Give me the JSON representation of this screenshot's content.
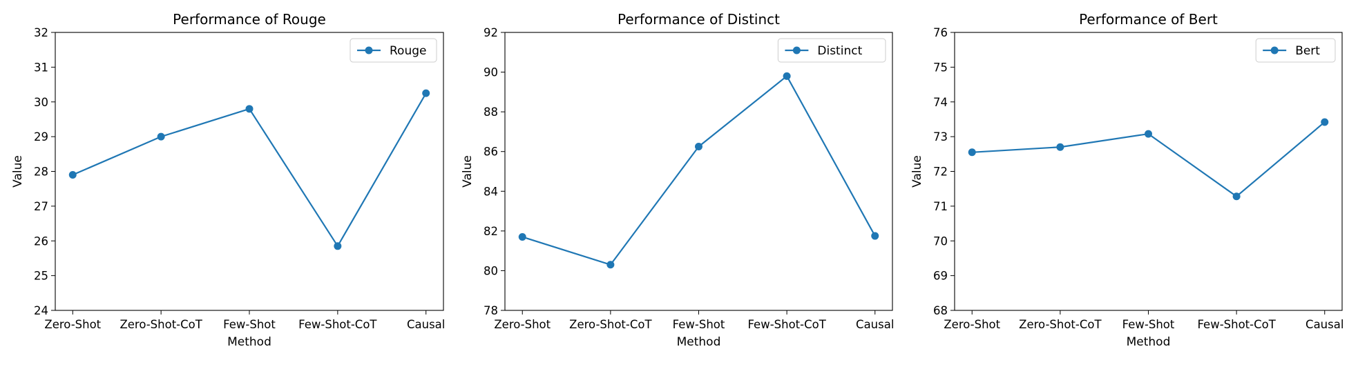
{
  "chart_data": [
    {
      "type": "line",
      "title": "Performance of Rouge",
      "xlabel": "Method",
      "ylabel": "Value",
      "categories": [
        "Zero-Shot",
        "Zero-Shot-CoT",
        "Few-Shot",
        "Few-Shot-CoT",
        "Causal"
      ],
      "series": [
        {
          "name": "Rouge",
          "values": [
            27.9,
            29.0,
            29.8,
            25.85,
            30.25
          ]
        }
      ],
      "ylim": [
        24,
        32
      ],
      "yticks": [
        "24",
        "25",
        "26",
        "27",
        "28",
        "29",
        "30",
        "31",
        "32"
      ],
      "legend": "top-right",
      "grid": false,
      "color": "#1f77b4"
    },
    {
      "type": "line",
      "title": "Performance of Distinct",
      "xlabel": "Method",
      "ylabel": "Value",
      "categories": [
        "Zero-Shot",
        "Zero-Shot-CoT",
        "Few-Shot",
        "Few-Shot-CoT",
        "Causal"
      ],
      "series": [
        {
          "name": "Distinct",
          "values": [
            81.7,
            80.3,
            86.25,
            89.8,
            81.75
          ]
        }
      ],
      "ylim": [
        78,
        92
      ],
      "yticks": [
        "78",
        "80",
        "82",
        "84",
        "86",
        "88",
        "90",
        "92"
      ],
      "legend": "top-right",
      "grid": false,
      "color": "#1f77b4"
    },
    {
      "type": "line",
      "title": "Performance of Bert",
      "xlabel": "Method",
      "ylabel": "Value",
      "categories": [
        "Zero-Shot",
        "Zero-Shot-CoT",
        "Few-Shot",
        "Few-Shot-CoT",
        "Causal"
      ],
      "series": [
        {
          "name": "Bert",
          "values": [
            72.55,
            72.7,
            73.08,
            71.28,
            73.42
          ]
        }
      ],
      "ylim": [
        68,
        76
      ],
      "yticks": [
        "68",
        "69",
        "70",
        "71",
        "72",
        "73",
        "74",
        "75",
        "76"
      ],
      "legend": "top-right",
      "grid": false,
      "color": "#1f77b4"
    }
  ]
}
